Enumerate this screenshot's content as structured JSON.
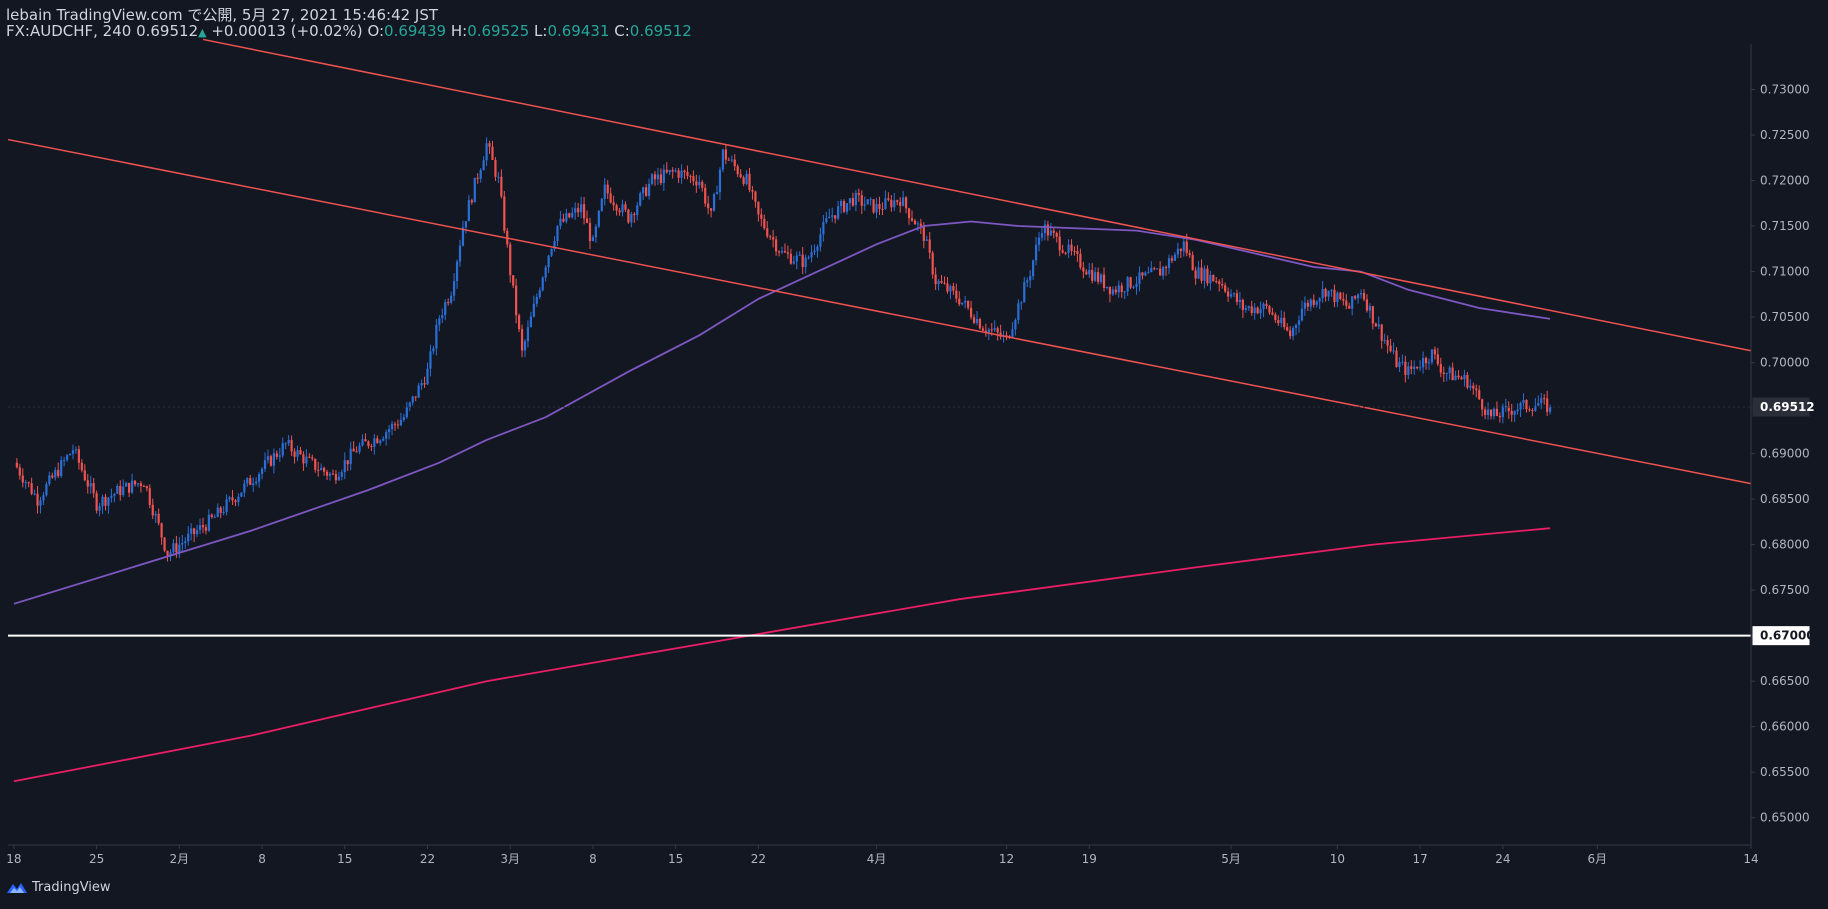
{
  "header": {
    "publisher_line": "lebain TradingView.com で公開, 5月 27, 2021 15:46:42 JST",
    "symbol": "FX:AUDCHF, 240",
    "last": "0.69512",
    "change": "+0.00013 (+0.02%)",
    "o_label": "O:",
    "o_value": "0.69439",
    "h_label": "H:",
    "h_value": "0.69525",
    "l_label": "L:",
    "l_value": "0.69431",
    "c_label": "C:",
    "c_value": "0.69512"
  },
  "footer": {
    "brand": "TradingView",
    "icon": "tradingview-logo-icon"
  },
  "colors": {
    "background": "#131722",
    "up_candle": "#2a6fd6",
    "down_candle": "#ef5350",
    "trendline": "#ef5350",
    "ma_fast": "#7e57c2",
    "ma_slow": "#e91e63",
    "level": "#ffffff",
    "axis_text": "#b2b5be"
  },
  "chart_data": {
    "type": "candlestick",
    "timeframe": "240",
    "ylim": [
      0.647,
      0.735
    ],
    "y_ticks": [
      "0.73000",
      "0.72500",
      "0.72000",
      "0.71500",
      "0.71000",
      "0.70500",
      "0.70000",
      "0.69500",
      "0.69000",
      "0.68500",
      "0.68000",
      "0.67500",
      "0.67000",
      "0.66500",
      "0.66000",
      "0.65500",
      "0.65000"
    ],
    "y_tick_values": [
      0.73,
      0.725,
      0.72,
      0.715,
      0.71,
      0.705,
      0.7,
      0.695,
      0.69,
      0.685,
      0.68,
      0.675,
      0.67,
      0.665,
      0.66,
      0.655,
      0.65
    ],
    "x_ticks": [
      {
        "label": "18",
        "t": 0
      },
      {
        "label": "25",
        "t": 7
      },
      {
        "label": "2月",
        "t": 14
      },
      {
        "label": "8",
        "t": 21
      },
      {
        "label": "15",
        "t": 28
      },
      {
        "label": "22",
        "t": 35
      },
      {
        "label": "3月",
        "t": 42
      },
      {
        "label": "8",
        "t": 49
      },
      {
        "label": "15",
        "t": 56
      },
      {
        "label": "22",
        "t": 63
      },
      {
        "label": "4月",
        "t": 73
      },
      {
        "label": "12",
        "t": 84
      },
      {
        "label": "19",
        "t": 91
      },
      {
        "label": "5月",
        "t": 103
      },
      {
        "label": "10",
        "t": 112
      },
      {
        "label": "17",
        "t": 119
      },
      {
        "label": "24",
        "t": 126
      },
      {
        "label": "6月",
        "t": 134
      },
      {
        "label": "14",
        "t": 147
      }
    ],
    "x_range": [
      -0.5,
      147
    ],
    "price_path": [
      [
        0,
        0.689
      ],
      [
        2,
        0.685
      ],
      [
        5,
        0.6905
      ],
      [
        7,
        0.6845
      ],
      [
        9,
        0.686
      ],
      [
        11,
        0.687
      ],
      [
        13,
        0.679
      ],
      [
        15,
        0.681
      ],
      [
        17,
        0.683
      ],
      [
        20,
        0.687
      ],
      [
        23,
        0.691
      ],
      [
        25,
        0.689
      ],
      [
        27,
        0.6875
      ],
      [
        29,
        0.6905
      ],
      [
        31,
        0.692
      ],
      [
        33,
        0.694
      ],
      [
        35,
        0.699
      ],
      [
        36,
        0.705
      ],
      [
        37,
        0.708
      ],
      [
        38,
        0.715
      ],
      [
        40,
        0.724
      ],
      [
        41,
        0.72
      ],
      [
        42,
        0.71
      ],
      [
        43,
        0.701
      ],
      [
        44,
        0.706
      ],
      [
        45,
        0.711
      ],
      [
        46,
        0.715
      ],
      [
        48,
        0.717
      ],
      [
        49,
        0.713
      ],
      [
        50,
        0.719
      ],
      [
        52,
        0.716
      ],
      [
        54,
        0.72
      ],
      [
        56,
        0.721
      ],
      [
        58,
        0.72
      ],
      [
        59,
        0.716
      ],
      [
        60,
        0.723
      ],
      [
        62,
        0.72
      ],
      [
        63,
        0.716
      ],
      [
        65,
        0.712
      ],
      [
        67,
        0.711
      ],
      [
        69,
        0.716
      ],
      [
        71,
        0.718
      ],
      [
        73,
        0.717
      ],
      [
        75,
        0.718
      ],
      [
        76,
        0.716
      ],
      [
        77,
        0.714
      ],
      [
        78,
        0.709
      ],
      [
        80,
        0.707
      ],
      [
        82,
        0.704
      ],
      [
        84,
        0.7025
      ],
      [
        86,
        0.71
      ],
      [
        87,
        0.715
      ],
      [
        89,
        0.7125
      ],
      [
        91,
        0.71
      ],
      [
        93,
        0.708
      ],
      [
        95,
        0.709
      ],
      [
        97,
        0.71
      ],
      [
        99,
        0.713
      ],
      [
        100,
        0.71
      ],
      [
        102,
        0.709
      ],
      [
        104,
        0.706
      ],
      [
        106,
        0.706
      ],
      [
        108,
        0.703
      ],
      [
        109,
        0.706
      ],
      [
        111,
        0.708
      ],
      [
        113,
        0.706
      ],
      [
        114,
        0.708
      ],
      [
        115,
        0.705
      ],
      [
        117,
        0.7
      ],
      [
        118,
        0.699
      ],
      [
        120,
        0.701
      ],
      [
        121,
        0.699
      ],
      [
        123,
        0.698
      ],
      [
        125,
        0.694
      ],
      [
        127,
        0.695
      ],
      [
        129,
        0.6955
      ],
      [
        130,
        0.6951
      ]
    ],
    "ma_fast_path": [
      [
        0,
        0.6735
      ],
      [
        10,
        0.6775
      ],
      [
        20,
        0.6815
      ],
      [
        30,
        0.686
      ],
      [
        36,
        0.689
      ],
      [
        40,
        0.6915
      ],
      [
        45,
        0.694
      ],
      [
        52,
        0.699
      ],
      [
        58,
        0.703
      ],
      [
        63,
        0.707
      ],
      [
        68,
        0.71
      ],
      [
        73,
        0.713
      ],
      [
        77,
        0.715
      ],
      [
        81,
        0.7155
      ],
      [
        85,
        0.715
      ],
      [
        89,
        0.7148
      ],
      [
        95,
        0.7145
      ],
      [
        100,
        0.7135
      ],
      [
        105,
        0.712
      ],
      [
        110,
        0.7105
      ],
      [
        114,
        0.71
      ],
      [
        118,
        0.708
      ],
      [
        124,
        0.706
      ],
      [
        130,
        0.7048
      ]
    ],
    "ma_slow_path": [
      [
        0,
        0.654
      ],
      [
        20,
        0.659
      ],
      [
        40,
        0.665
      ],
      [
        60,
        0.6695
      ],
      [
        80,
        0.674
      ],
      [
        100,
        0.6775
      ],
      [
        115,
        0.68
      ],
      [
        130,
        0.6818
      ]
    ],
    "channel_upper": [
      [
        16,
        0.7355
      ],
      [
        147,
        0.7013
      ]
    ],
    "channel_lower": [
      [
        -0.5,
        0.7245
      ],
      [
        147,
        0.6867
      ]
    ],
    "horizontal_level": 0.67,
    "horizontal_level_label": "0.67000",
    "last_price": 0.69512,
    "last_price_label": "0.69512"
  }
}
